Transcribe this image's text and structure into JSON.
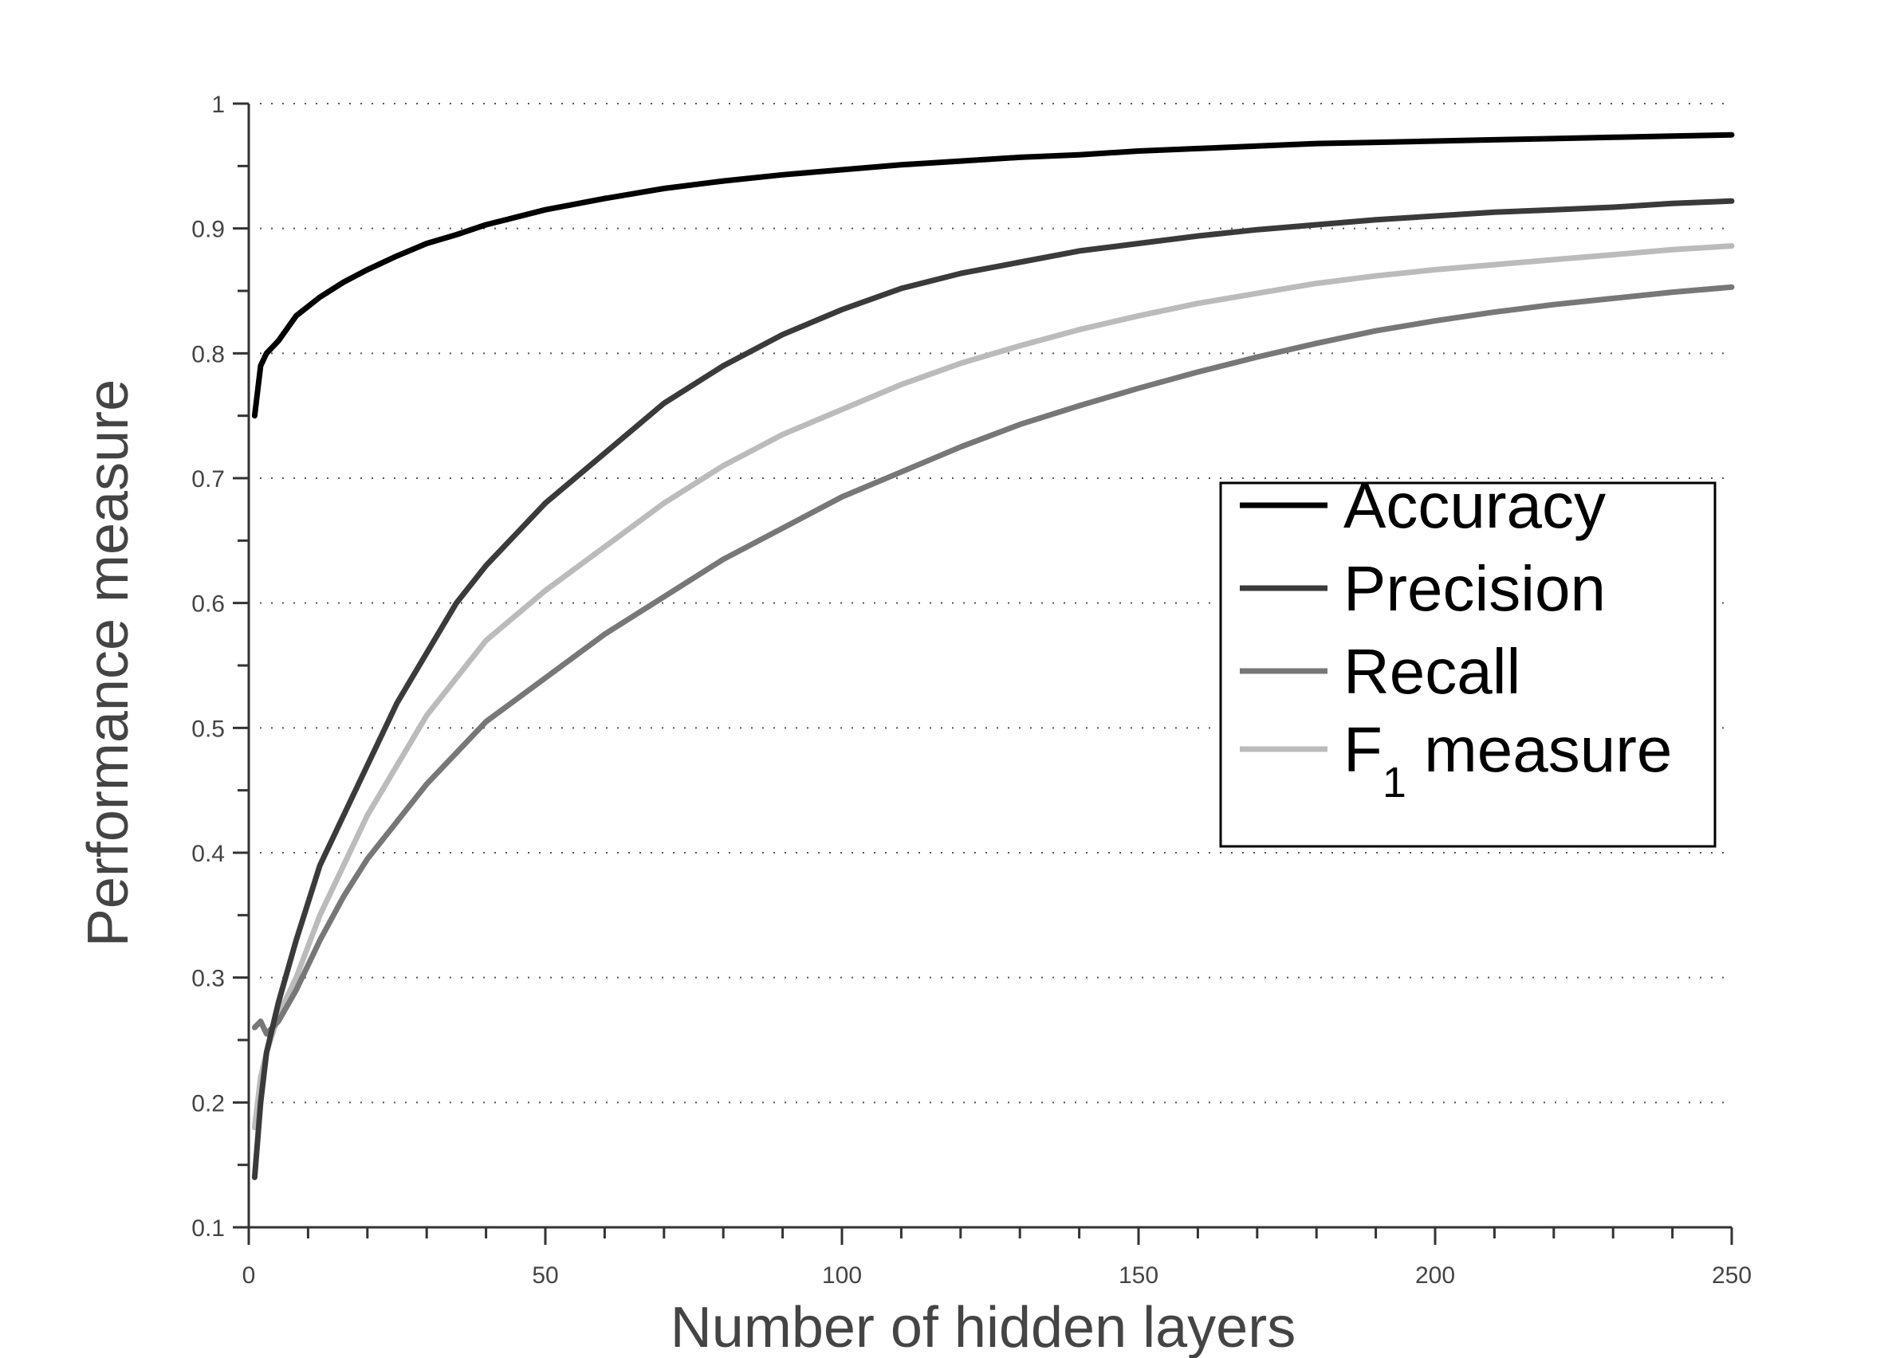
{
  "chart_data": {
    "type": "line",
    "xlabel": "Number of hidden layers",
    "ylabel": "Performance measure",
    "xlim": [
      0,
      250
    ],
    "ylim": [
      0.1,
      1
    ],
    "xticks": [
      0,
      50,
      100,
      150,
      200,
      250
    ],
    "xtick_labels": [
      "0",
      "50",
      "100",
      "150",
      "200",
      "250"
    ],
    "yticks": [
      0.1,
      0.2,
      0.3,
      0.4,
      0.5,
      0.6,
      0.7,
      0.8,
      0.9,
      1
    ],
    "ytick_labels": [
      "0.1",
      "0.2",
      "0.3",
      "0.4",
      "0.5",
      "0.6",
      "0.7",
      "0.8",
      "0.9",
      "1"
    ],
    "grid": "horizontal-dotted",
    "legend_position": "right-middle",
    "series": [
      {
        "name": "Accuracy",
        "color": "#000000",
        "x": [
          1,
          2,
          3,
          5,
          8,
          12,
          16,
          20,
          25,
          30,
          35,
          40,
          50,
          60,
          70,
          80,
          90,
          100,
          110,
          120,
          130,
          140,
          150,
          160,
          170,
          180,
          190,
          200,
          210,
          220,
          230,
          240,
          250
        ],
        "y": [
          0.75,
          0.79,
          0.8,
          0.81,
          0.83,
          0.845,
          0.857,
          0.867,
          0.878,
          0.888,
          0.895,
          0.903,
          0.915,
          0.924,
          0.932,
          0.938,
          0.943,
          0.947,
          0.951,
          0.954,
          0.957,
          0.959,
          0.962,
          0.964,
          0.966,
          0.968,
          0.969,
          0.97,
          0.971,
          0.972,
          0.973,
          0.974,
          0.975
        ]
      },
      {
        "name": "Precision",
        "color": "#3a3a3a",
        "x": [
          1,
          2,
          3,
          5,
          8,
          12,
          16,
          20,
          25,
          30,
          35,
          40,
          50,
          60,
          70,
          80,
          90,
          100,
          110,
          120,
          130,
          140,
          150,
          160,
          170,
          180,
          190,
          200,
          210,
          220,
          230,
          240,
          250
        ],
        "y": [
          0.14,
          0.2,
          0.24,
          0.28,
          0.33,
          0.39,
          0.43,
          0.47,
          0.52,
          0.56,
          0.6,
          0.63,
          0.68,
          0.72,
          0.76,
          0.79,
          0.815,
          0.835,
          0.852,
          0.864,
          0.873,
          0.882,
          0.888,
          0.894,
          0.899,
          0.903,
          0.907,
          0.91,
          0.913,
          0.915,
          0.917,
          0.92,
          0.922
        ]
      },
      {
        "name": "Recall",
        "color": "#777777",
        "x": [
          1,
          2,
          3,
          5,
          8,
          12,
          16,
          20,
          25,
          30,
          35,
          40,
          50,
          60,
          70,
          80,
          90,
          100,
          110,
          120,
          130,
          140,
          150,
          160,
          170,
          180,
          190,
          200,
          210,
          220,
          230,
          240,
          250
        ],
        "y": [
          0.26,
          0.265,
          0.255,
          0.265,
          0.29,
          0.33,
          0.365,
          0.395,
          0.425,
          0.455,
          0.48,
          0.505,
          0.54,
          0.575,
          0.605,
          0.635,
          0.66,
          0.685,
          0.705,
          0.725,
          0.743,
          0.758,
          0.772,
          0.785,
          0.797,
          0.808,
          0.818,
          0.826,
          0.833,
          0.839,
          0.844,
          0.849,
          0.853
        ]
      },
      {
        "name": "F",
        "name_sub": "1",
        "name_suffix": " measure",
        "color": "#bbbbbb",
        "x": [
          1,
          2,
          3,
          5,
          8,
          12,
          16,
          20,
          25,
          30,
          35,
          40,
          50,
          60,
          70,
          80,
          90,
          100,
          110,
          120,
          130,
          140,
          150,
          160,
          170,
          180,
          190,
          200,
          210,
          220,
          230,
          240,
          250
        ],
        "y": [
          0.18,
          0.22,
          0.24,
          0.27,
          0.3,
          0.35,
          0.39,
          0.43,
          0.47,
          0.51,
          0.54,
          0.57,
          0.61,
          0.645,
          0.68,
          0.71,
          0.735,
          0.755,
          0.775,
          0.792,
          0.806,
          0.819,
          0.83,
          0.84,
          0.848,
          0.856,
          0.862,
          0.867,
          0.871,
          0.875,
          0.879,
          0.883,
          0.886
        ]
      }
    ]
  }
}
